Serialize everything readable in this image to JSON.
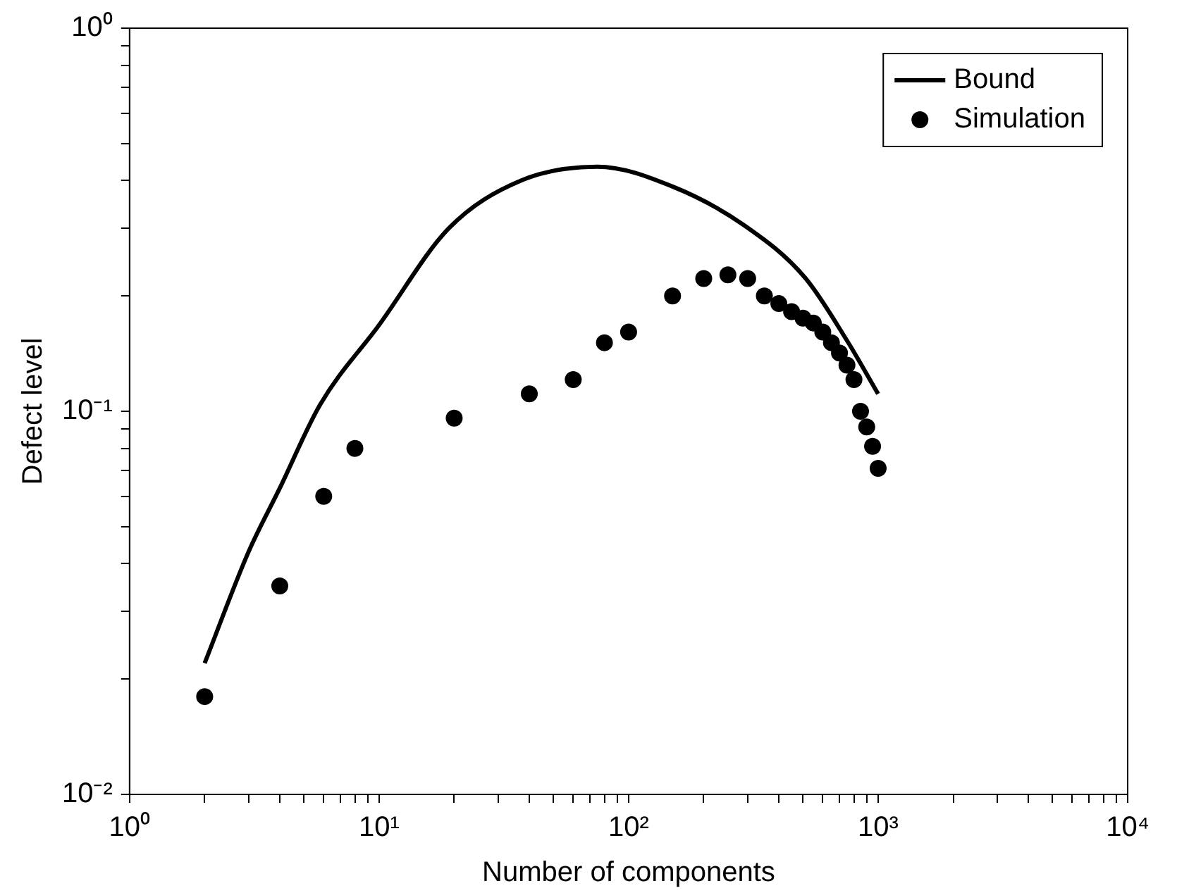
{
  "chart_data": {
    "type": "line",
    "xlabel": "Number of components",
    "ylabel": "Defect level",
    "log": "xy",
    "grid": false,
    "legend": "top right",
    "xlim": [
      1,
      10000
    ],
    "ylim": [
      0.01,
      1
    ],
    "xticks": [
      {
        "value": 1,
        "label": "10⁰"
      },
      {
        "value": 2,
        "label": null
      },
      {
        "value": 3,
        "label": null
      },
      {
        "value": 4,
        "label": null
      },
      {
        "value": 5,
        "label": null
      },
      {
        "value": 6,
        "label": null
      },
      {
        "value": 7,
        "label": null
      },
      {
        "value": 8,
        "label": null
      },
      {
        "value": 9,
        "label": null
      },
      {
        "value": 10,
        "label": "10¹"
      },
      {
        "value": 20,
        "label": null
      },
      {
        "value": 30,
        "label": null
      },
      {
        "value": 40,
        "label": null
      },
      {
        "value": 50,
        "label": null
      },
      {
        "value": 60,
        "label": null
      },
      {
        "value": 70,
        "label": null
      },
      {
        "value": 80,
        "label": null
      },
      {
        "value": 90,
        "label": null
      },
      {
        "value": 100,
        "label": "10²"
      },
      {
        "value": 200,
        "label": null
      },
      {
        "value": 300,
        "label": null
      },
      {
        "value": 400,
        "label": null
      },
      {
        "value": 500,
        "label": null
      },
      {
        "value": 600,
        "label": null
      },
      {
        "value": 700,
        "label": null
      },
      {
        "value": 800,
        "label": null
      },
      {
        "value": 900,
        "label": null
      },
      {
        "value": 1000,
        "label": "10³"
      },
      {
        "value": 2000,
        "label": null
      },
      {
        "value": 3000,
        "label": null
      },
      {
        "value": 4000,
        "label": null
      },
      {
        "value": 5000,
        "label": null
      },
      {
        "value": 6000,
        "label": null
      },
      {
        "value": 7000,
        "label": null
      },
      {
        "value": 8000,
        "label": null
      },
      {
        "value": 9000,
        "label": null
      },
      {
        "value": 10000,
        "label": "10⁴"
      }
    ],
    "yticks": [
      {
        "value": 0.01,
        "label": "10⁻²"
      },
      {
        "value": 0.02,
        "label": null
      },
      {
        "value": 0.03,
        "label": null
      },
      {
        "value": 0.04,
        "label": null
      },
      {
        "value": 0.05,
        "label": null
      },
      {
        "value": 0.06,
        "label": null
      },
      {
        "value": 0.07,
        "label": null
      },
      {
        "value": 0.08,
        "label": null
      },
      {
        "value": 0.09,
        "label": null
      },
      {
        "value": 0.1,
        "label": "10⁻¹"
      },
      {
        "value": 0.2,
        "label": null
      },
      {
        "value": 0.3,
        "label": null
      },
      {
        "value": 0.4,
        "label": null
      },
      {
        "value": 0.5,
        "label": null
      },
      {
        "value": 0.6,
        "label": null
      },
      {
        "value": 0.7,
        "label": null
      },
      {
        "value": 0.8,
        "label": null
      },
      {
        "value": 0.9,
        "label": null
      },
      {
        "value": 1,
        "label": "10⁰"
      }
    ],
    "series": [
      {
        "name": "Bound",
        "color": "#000000",
        "line_style": "solid",
        "marker": "none",
        "x": [
          2,
          3,
          4,
          5.8,
          10,
          19,
          37,
          75,
          150,
          290,
          510,
          750,
          1000
        ],
        "values": [
          0.022,
          0.043,
          0.063,
          0.104,
          0.168,
          0.3,
          0.4,
          0.435,
          0.386,
          0.306,
          0.223,
          0.153,
          0.111
        ]
      },
      {
        "name": "Simulation",
        "type": "scatter",
        "color": "#000000",
        "marker": "circle",
        "x": [
          2,
          4,
          6,
          8,
          20,
          40,
          60,
          80,
          100,
          150,
          200,
          250,
          300,
          350,
          400,
          450,
          500,
          550,
          600,
          650,
          700,
          750,
          800,
          850,
          900,
          950,
          1000
        ],
        "values": [
          0.018,
          0.035,
          0.06,
          0.08,
          0.096,
          0.111,
          0.121,
          0.151,
          0.161,
          0.2,
          0.222,
          0.227,
          0.222,
          0.2,
          0.191,
          0.182,
          0.175,
          0.17,
          0.161,
          0.151,
          0.142,
          0.132,
          0.121,
          0.1,
          0.091,
          0.081,
          0.071
        ]
      }
    ]
  }
}
